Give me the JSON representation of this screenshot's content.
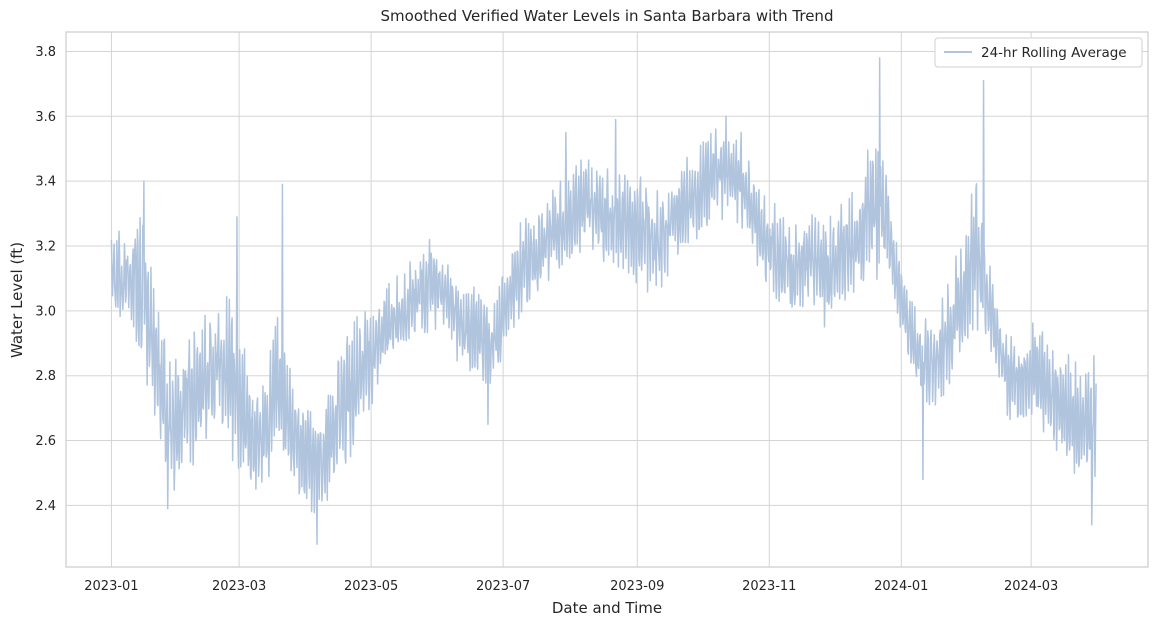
{
  "chart_data": {
    "type": "line",
    "title": "Smoothed Verified Water Levels in Santa Barbara with Trend",
    "xlabel": "Date and Time",
    "ylabel": "Water Level (ft)",
    "x_range": [
      "2022-12-11",
      "2024-04-24"
    ],
    "ylim": [
      2.21,
      3.86
    ],
    "grid": true,
    "legend_position": "top-right",
    "x_ticks": [
      "2023-01",
      "2023-03",
      "2023-05",
      "2023-07",
      "2023-09",
      "2023-11",
      "2024-01",
      "2024-03"
    ],
    "y_ticks": [
      "2.4",
      "2.6",
      "2.8",
      "3.0",
      "3.2",
      "3.4",
      "3.6",
      "3.8"
    ],
    "series": [
      {
        "name": "24-hr Rolling Average",
        "color": "#b0c4de",
        "x": [
          "2023-01-01",
          "2023-01-08",
          "2023-01-15",
          "2023-01-22",
          "2023-01-29",
          "2023-02-05",
          "2023-02-12",
          "2023-02-19",
          "2023-02-26",
          "2023-03-05",
          "2023-03-12",
          "2023-03-19",
          "2023-03-26",
          "2023-04-02",
          "2023-04-09",
          "2023-04-16",
          "2023-04-23",
          "2023-04-30",
          "2023-05-07",
          "2023-05-14",
          "2023-05-21",
          "2023-05-28",
          "2023-06-04",
          "2023-06-11",
          "2023-06-18",
          "2023-06-25",
          "2023-07-02",
          "2023-07-09",
          "2023-07-16",
          "2023-07-23",
          "2023-07-30",
          "2023-08-06",
          "2023-08-13",
          "2023-08-20",
          "2023-08-27",
          "2023-09-03",
          "2023-09-10",
          "2023-09-17",
          "2023-09-24",
          "2023-10-01",
          "2023-10-08",
          "2023-10-15",
          "2023-10-22",
          "2023-10-29",
          "2023-11-05",
          "2023-11-12",
          "2023-11-19",
          "2023-11-26",
          "2023-12-03",
          "2023-12-10",
          "2023-12-17",
          "2023-12-24",
          "2023-12-31",
          "2024-01-07",
          "2024-01-14",
          "2024-01-21",
          "2024-01-28",
          "2024-02-04",
          "2024-02-11",
          "2024-02-18",
          "2024-02-25",
          "2024-03-03",
          "2024-03-10",
          "2024-03-17",
          "2024-03-24",
          "2024-03-31"
        ],
        "low": [
          3.0,
          2.95,
          2.85,
          2.6,
          2.45,
          2.5,
          2.6,
          2.7,
          2.55,
          2.45,
          2.45,
          2.55,
          2.45,
          2.4,
          2.4,
          2.5,
          2.6,
          2.7,
          2.8,
          2.85,
          2.9,
          2.95,
          2.95,
          2.85,
          2.8,
          2.75,
          2.9,
          3.0,
          3.05,
          3.1,
          3.15,
          3.2,
          3.2,
          3.15,
          3.1,
          3.1,
          3.05,
          3.15,
          3.2,
          3.25,
          3.3,
          3.3,
          3.25,
          3.1,
          3.05,
          3.0,
          3.05,
          2.95,
          3.0,
          3.05,
          3.1,
          3.15,
          2.95,
          2.8,
          2.7,
          2.75,
          2.85,
          2.95,
          2.9,
          2.7,
          2.65,
          2.7,
          2.6,
          2.55,
          2.5,
          2.45
        ],
        "high": [
          3.25,
          3.2,
          3.3,
          3.0,
          2.85,
          2.9,
          2.95,
          3.0,
          3.05,
          2.8,
          2.75,
          3.0,
          2.75,
          2.7,
          2.7,
          2.85,
          2.95,
          3.0,
          3.05,
          3.1,
          3.15,
          3.2,
          3.15,
          3.1,
          3.05,
          3.0,
          3.15,
          3.25,
          3.3,
          3.35,
          3.4,
          3.45,
          3.45,
          3.4,
          3.45,
          3.4,
          3.35,
          3.4,
          3.45,
          3.5,
          3.55,
          3.55,
          3.45,
          3.35,
          3.3,
          3.25,
          3.3,
          3.25,
          3.3,
          3.35,
          3.55,
          3.45,
          3.15,
          3.0,
          2.95,
          3.05,
          3.2,
          3.4,
          3.15,
          2.95,
          2.9,
          2.95,
          2.9,
          2.85,
          2.8,
          2.95
        ],
        "extremes": [
          {
            "x": "2023-01-16",
            "y": 3.4
          },
          {
            "x": "2023-01-27",
            "y": 2.39
          },
          {
            "x": "2023-02-28",
            "y": 3.29
          },
          {
            "x": "2023-03-21",
            "y": 3.39
          },
          {
            "x": "2023-04-06",
            "y": 2.28
          },
          {
            "x": "2023-05-28",
            "y": 3.22
          },
          {
            "x": "2023-06-24",
            "y": 2.65
          },
          {
            "x": "2023-07-30",
            "y": 3.55
          },
          {
            "x": "2023-08-22",
            "y": 3.59
          },
          {
            "x": "2023-10-12",
            "y": 3.6
          },
          {
            "x": "2023-10-19",
            "y": 3.55
          },
          {
            "x": "2023-12-22",
            "y": 3.78
          },
          {
            "x": "2024-01-11",
            "y": 2.48
          },
          {
            "x": "2024-02-08",
            "y": 3.71
          },
          {
            "x": "2024-03-29",
            "y": 2.34
          }
        ]
      }
    ]
  }
}
